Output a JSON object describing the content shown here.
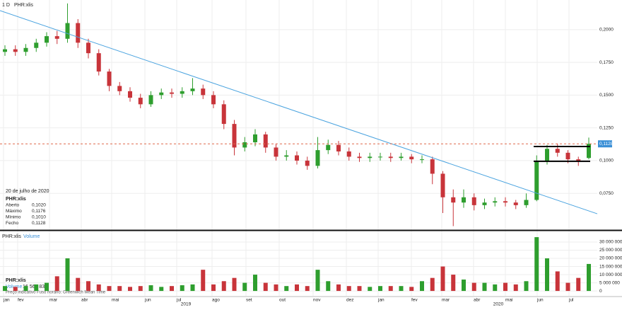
{
  "chart_data": {
    "type": "candlestick",
    "title": "PHR:xlis",
    "interval": "1 D",
    "open": [
      0.183,
      0.185,
      0.183,
      0.186,
      0.19,
      0.195,
      0.193,
      0.205,
      0.19,
      0.182,
      0.168,
      0.157,
      0.153,
      0.148,
      0.143,
      0.15,
      0.152,
      0.151,
      0.153,
      0.155,
      0.15,
      0.143,
      0.128,
      0.11,
      0.114,
      0.12,
      0.11,
      0.103,
      0.104,
      0.1,
      0.096,
      0.108,
      0.112,
      0.107,
      0.103,
      0.102,
      0.103,
      0.103,
      0.102,
      0.103,
      0.101,
      0.101,
      0.09,
      0.072,
      0.068,
      0.072,
      0.066,
      0.068,
      0.069,
      0.068,
      0.066,
      0.07,
      0.1,
      0.109,
      0.106,
      0.101,
      0.102
    ],
    "high": [
      0.188,
      0.188,
      0.189,
      0.193,
      0.198,
      0.199,
      0.22,
      0.208,
      0.193,
      0.185,
      0.17,
      0.16,
      0.156,
      0.151,
      0.153,
      0.155,
      0.155,
      0.156,
      0.163,
      0.158,
      0.153,
      0.146,
      0.131,
      0.118,
      0.124,
      0.122,
      0.113,
      0.108,
      0.107,
      0.103,
      0.118,
      0.116,
      0.115,
      0.11,
      0.106,
      0.106,
      0.106,
      0.106,
      0.106,
      0.105,
      0.104,
      0.103,
      0.092,
      0.078,
      0.078,
      0.075,
      0.071,
      0.072,
      0.072,
      0.07,
      0.075,
      0.104,
      0.112,
      0.113,
      0.108,
      0.103,
      0.1176
    ],
    "low": [
      0.18,
      0.18,
      0.18,
      0.183,
      0.187,
      0.189,
      0.19,
      0.186,
      0.178,
      0.165,
      0.153,
      0.15,
      0.145,
      0.14,
      0.141,
      0.147,
      0.148,
      0.148,
      0.15,
      0.147,
      0.14,
      0.124,
      0.104,
      0.107,
      0.111,
      0.106,
      0.1,
      0.1,
      0.097,
      0.093,
      0.094,
      0.105,
      0.104,
      0.1,
      0.099,
      0.099,
      0.1,
      0.099,
      0.1,
      0.098,
      0.098,
      0.082,
      0.06,
      0.05,
      0.064,
      0.062,
      0.063,
      0.065,
      0.065,
      0.063,
      0.064,
      0.069,
      0.097,
      0.103,
      0.098,
      0.096,
      0.101
    ],
    "close": [
      0.185,
      0.183,
      0.186,
      0.19,
      0.195,
      0.193,
      0.205,
      0.19,
      0.182,
      0.168,
      0.157,
      0.153,
      0.148,
      0.143,
      0.15,
      0.152,
      0.151,
      0.153,
      0.155,
      0.15,
      0.143,
      0.128,
      0.11,
      0.114,
      0.12,
      0.11,
      0.103,
      0.104,
      0.1,
      0.096,
      0.108,
      0.112,
      0.107,
      0.103,
      0.102,
      0.103,
      0.103,
      0.102,
      0.103,
      0.101,
      0.101,
      0.09,
      0.072,
      0.068,
      0.072,
      0.066,
      0.068,
      0.069,
      0.068,
      0.066,
      0.07,
      0.1,
      0.109,
      0.106,
      0.101,
      0.1,
      0.1128
    ],
    "volume": [
      3000000,
      2500000,
      3000000,
      4000000,
      5000000,
      9000000,
      20000000,
      8000000,
      6000000,
      4000000,
      3000000,
      3000000,
      2500000,
      3000000,
      3500000,
      2500000,
      3000000,
      3500000,
      4000000,
      13000000,
      4000000,
      6000000,
      8000000,
      5000000,
      10000000,
      5000000,
      4000000,
      3000000,
      4000000,
      3000000,
      13000000,
      6000000,
      4000000,
      3000000,
      3000000,
      2500000,
      3000000,
      3000000,
      3000000,
      2500000,
      6000000,
      8000000,
      15000000,
      10000000,
      7000000,
      5000000,
      5000000,
      4000000,
      5000000,
      4000000,
      6000000,
      33000000,
      20000000,
      12000000,
      5000000,
      8000000,
      16561833
    ],
    "up_color": "#2e9e2e",
    "down_color": "#c8343a",
    "ylim": [
      0.0481,
      0.2226
    ],
    "yticks": [
      {
        "value": 0.075,
        "label": "0,0750"
      },
      {
        "value": 0.1,
        "label": "0,1000"
      },
      {
        "value": 0.125,
        "label": "0,1250"
      },
      {
        "value": 0.15,
        "label": "0,1500"
      },
      {
        "value": 0.175,
        "label": "0,1750"
      },
      {
        "value": 0.2,
        "label": "0,2000"
      }
    ],
    "y2lim": [
      -3000000,
      35200000
    ],
    "y2ticks": [
      {
        "value": 0,
        "label": "0"
      },
      {
        "value": 5000000,
        "label": "5 000 000"
      },
      {
        "value": 10000000,
        "label": "10 000 000"
      },
      {
        "value": 15000000,
        "label": "15 000 000"
      },
      {
        "value": 20000000,
        "label": "20 000 000"
      },
      {
        "value": 25000000,
        "label": "25 000 000"
      },
      {
        "value": 30000000,
        "label": "30 000 000"
      }
    ],
    "months": [
      "jan",
      "fev",
      "mar",
      "abr",
      "mai",
      "jun",
      "jul",
      "ago",
      "set",
      "out",
      "nov",
      "dez",
      "jan",
      "fev",
      "mar",
      "abr",
      "mai",
      "jun",
      "jul"
    ],
    "years": [
      "2019",
      "2020"
    ],
    "trendline": [
      0.2145,
      0.0594
    ],
    "range_lines": [
      0.1108,
      0.0995
    ],
    "last_price": {
      "value": 0.1128,
      "label": "0,1128"
    },
    "info": {
      "date": "20 de julho de 2020",
      "symbol": "PHR:xlis",
      "rows": [
        [
          "Aberto",
          "0,1020"
        ],
        [
          "Máximo",
          "0,1176"
        ],
        [
          "Mínimo",
          "0,1010"
        ],
        [
          "Fecho",
          "0,1128"
        ]
      ]
    },
    "volume_panel": {
      "symbol": "PHR:xlis",
      "label": "Volume",
      "last_volume": "16 561 833",
      "note": "Preço indicativo   Fuso horário: Greenwich Mean Time"
    }
  }
}
